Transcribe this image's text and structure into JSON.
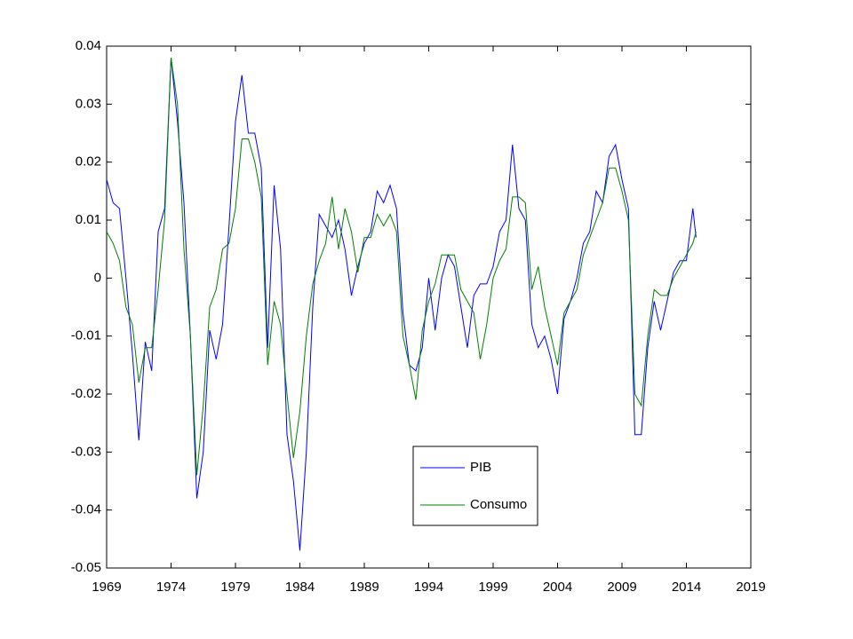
{
  "chart_data": {
    "type": "line",
    "x": [
      1969,
      1969.5,
      1970,
      1970.5,
      1971,
      1971.5,
      1972,
      1972.5,
      1973,
      1973.5,
      1974,
      1974.5,
      1975,
      1975.5,
      1976,
      1976.5,
      1977,
      1977.5,
      1978,
      1978.5,
      1979,
      1979.5,
      1980,
      1980.5,
      1981,
      1981.5,
      1982,
      1982.5,
      1983,
      1983.5,
      1984,
      1984.5,
      1985,
      1985.5,
      1986,
      1986.5,
      1987,
      1987.5,
      1988,
      1988.5,
      1989,
      1989.5,
      1990,
      1990.5,
      1991,
      1991.5,
      1992,
      1992.5,
      1993,
      1993.5,
      1994,
      1994.5,
      1995,
      1995.5,
      1996,
      1996.5,
      1997,
      1997.5,
      1998,
      1998.5,
      1999,
      1999.5,
      2000,
      2000.5,
      2001,
      2001.5,
      2002,
      2002.5,
      2003,
      2003.5,
      2004,
      2004.5,
      2005,
      2005.5,
      2006,
      2006.5,
      2007,
      2007.5,
      2008,
      2008.5,
      2009,
      2009.5,
      2010,
      2010.5,
      2011,
      2011.5,
      2012,
      2012.5,
      2013,
      2013.5,
      2014,
      2014.5,
      2014.75
    ],
    "series": [
      {
        "name": "PIB",
        "color": "#0000ff",
        "values": [
          0.017,
          0.013,
          0.012,
          0.0,
          -0.013,
          -0.028,
          -0.011,
          -0.016,
          0.008,
          0.012,
          0.038,
          0.027,
          0.013,
          -0.01,
          -0.038,
          -0.03,
          -0.009,
          -0.014,
          -0.008,
          0.009,
          0.027,
          0.035,
          0.025,
          0.025,
          0.019,
          -0.012,
          0.016,
          0.005,
          -0.027,
          -0.035,
          -0.047,
          -0.03,
          -0.005,
          0.011,
          0.009,
          0.007,
          0.01,
          0.005,
          -0.003,
          0.002,
          0.006,
          0.008,
          0.015,
          0.013,
          0.016,
          0.012,
          -0.006,
          -0.015,
          -0.016,
          -0.012,
          0.0,
          -0.009,
          0.0,
          0.004,
          0.002,
          -0.005,
          -0.012,
          -0.003,
          -0.001,
          -0.001,
          0.002,
          0.008,
          0.01,
          0.023,
          0.012,
          0.01,
          -0.008,
          -0.012,
          -0.01,
          -0.014,
          -0.02,
          -0.007,
          -0.004,
          0.0,
          0.006,
          0.008,
          0.015,
          0.013,
          0.021,
          0.023,
          0.017,
          0.012,
          -0.027,
          -0.027,
          -0.012,
          -0.004,
          -0.009,
          -0.004,
          0.001,
          0.003,
          0.003,
          0.012,
          0.007
        ]
      },
      {
        "name": "Consumo",
        "color": "#008000",
        "values": [
          0.008,
          0.006,
          0.003,
          -0.005,
          -0.008,
          -0.018,
          -0.012,
          -0.012,
          -0.002,
          0.01,
          0.038,
          0.03,
          0.005,
          -0.01,
          -0.034,
          -0.022,
          -0.005,
          -0.002,
          0.005,
          0.006,
          0.012,
          0.024,
          0.024,
          0.02,
          0.014,
          -0.015,
          -0.004,
          -0.008,
          -0.02,
          -0.031,
          -0.023,
          -0.01,
          -0.001,
          0.003,
          0.006,
          0.014,
          0.005,
          0.012,
          0.008,
          0.001,
          0.007,
          0.007,
          0.011,
          0.009,
          0.011,
          0.008,
          -0.01,
          -0.015,
          -0.021,
          -0.009,
          -0.004,
          -0.001,
          0.004,
          0.004,
          0.004,
          -0.002,
          -0.004,
          -0.006,
          -0.014,
          -0.008,
          0.0,
          0.003,
          0.005,
          0.014,
          0.014,
          0.013,
          -0.002,
          0.002,
          -0.005,
          -0.01,
          -0.015,
          -0.006,
          -0.004,
          -0.002,
          0.004,
          0.007,
          0.01,
          0.013,
          0.019,
          0.019,
          0.015,
          0.01,
          -0.02,
          -0.022,
          -0.01,
          -0.002,
          -0.003,
          -0.003,
          0.0,
          0.002,
          0.004,
          0.006,
          0.008
        ]
      }
    ],
    "xlim": [
      1969,
      2019
    ],
    "xticks": [
      1969,
      1974,
      1979,
      1984,
      1989,
      1994,
      1999,
      2004,
      2009,
      2014,
      2019
    ],
    "ylim": [
      -0.05,
      0.04
    ],
    "yticks": [
      -0.05,
      -0.04,
      -0.03,
      -0.02,
      -0.01,
      0,
      0.01,
      0.02,
      0.03,
      0.04
    ],
    "grid": false,
    "legend": "bottom-center"
  }
}
